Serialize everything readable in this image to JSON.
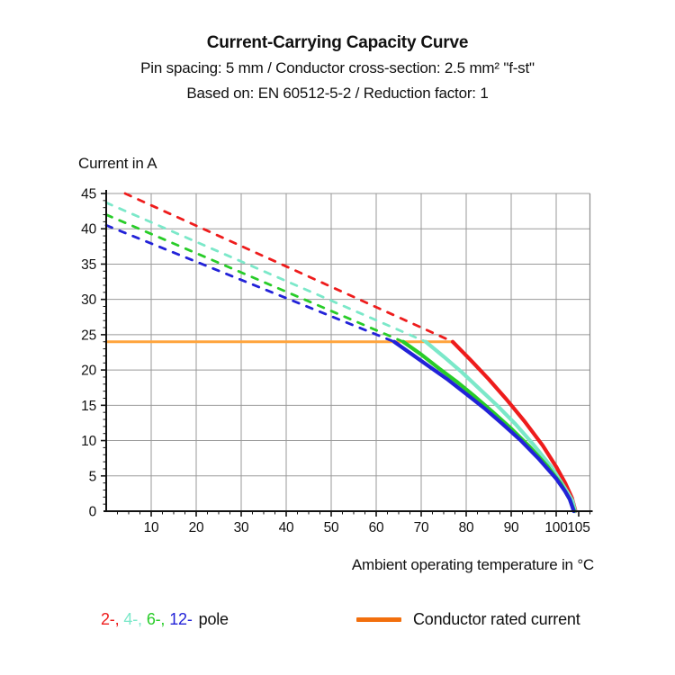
{
  "header": {
    "title": "Current-Carrying Capacity Curve",
    "subtitle_line1": "Pin spacing: 5 mm / Conductor cross-section: 2.5 mm² \"f-st\"",
    "subtitle_line2": "Based on: EN 60512-5-2 / Reduction factor: 1"
  },
  "chart_data": {
    "type": "line",
    "title": "Current-Carrying Capacity Curve",
    "xlabel": "Ambient operating temperature in °C",
    "ylabel": "Current in A",
    "xlim": [
      0,
      107.5
    ],
    "ylim": [
      0,
      45
    ],
    "x_ticks": [
      10,
      20,
      30,
      40,
      50,
      60,
      70,
      80,
      90,
      100,
      105
    ],
    "x_minor_step": 2.5,
    "y_ticks": [
      0,
      5,
      10,
      15,
      20,
      25,
      30,
      35,
      40,
      45
    ],
    "y_minor_step": 1,
    "grid": {
      "x_step": 10,
      "y_step": 5,
      "color": "#999999",
      "border_color": "#8c8c8c"
    },
    "rated_current": {
      "label": "Conductor rated current",
      "value": 24,
      "x_start": 0,
      "x_end": 77,
      "color": "#FFA43C"
    },
    "series": [
      {
        "name": "2-pole",
        "color": "#EE1C1C",
        "dashed": [
          [
            4.2,
            45
          ],
          [
            77,
            24
          ]
        ],
        "solid": [
          [
            77,
            24
          ],
          [
            81,
            21.4
          ],
          [
            85,
            18.7
          ],
          [
            89,
            15.8
          ],
          [
            93,
            12.7
          ],
          [
            97,
            9.3
          ],
          [
            100,
            6.3
          ],
          [
            102,
            4.0
          ],
          [
            103.5,
            1.9
          ],
          [
            104.3,
            0
          ]
        ]
      },
      {
        "name": "4-pole",
        "color": "#7BE8C9",
        "dashed": [
          [
            0,
            43.7
          ],
          [
            71,
            24
          ]
        ],
        "solid": [
          [
            71,
            24
          ],
          [
            75,
            21.9
          ],
          [
            79,
            19.7
          ],
          [
            83,
            17.3
          ],
          [
            87,
            14.9
          ],
          [
            91,
            12.3
          ],
          [
            95,
            9.4
          ],
          [
            99,
            6.2
          ],
          [
            102,
            3.2
          ],
          [
            103.6,
            1.5
          ],
          [
            104.2,
            0
          ]
        ]
      },
      {
        "name": "6-pole",
        "color": "#28CC28",
        "dashed": [
          [
            0,
            42.0
          ],
          [
            66,
            24
          ]
        ],
        "solid": [
          [
            66,
            24
          ],
          [
            70,
            22.2
          ],
          [
            74,
            20.2
          ],
          [
            78,
            18.3
          ],
          [
            82,
            16.2
          ],
          [
            86,
            14.0
          ],
          [
            90,
            11.7
          ],
          [
            94,
            9.2
          ],
          [
            98,
            6.4
          ],
          [
            101,
            3.9
          ],
          [
            103,
            1.7
          ],
          [
            104,
            0
          ]
        ]
      },
      {
        "name": "12-pole",
        "color": "#2222D8",
        "dashed": [
          [
            0,
            40.5
          ],
          [
            64,
            24
          ]
        ],
        "solid": [
          [
            64,
            24
          ],
          [
            68,
            22.2
          ],
          [
            72,
            20.4
          ],
          [
            76,
            18.6
          ],
          [
            80,
            16.6
          ],
          [
            84,
            14.6
          ],
          [
            88,
            12.4
          ],
          [
            92,
            10.1
          ],
          [
            96,
            7.5
          ],
          [
            100,
            4.6
          ],
          [
            102,
            2.8
          ],
          [
            103,
            1.7
          ],
          [
            103.9,
            0
          ]
        ]
      }
    ]
  },
  "legend": {
    "poles": [
      {
        "label": "2-,",
        "color": "#EE1C1C"
      },
      {
        "label": "4-,",
        "color": "#7BE8C9"
      },
      {
        "label": "6-,",
        "color": "#28CC28"
      },
      {
        "label": "12-",
        "color": "#2222D8"
      }
    ],
    "suffix": "pole",
    "rated": {
      "label": "Conductor rated current",
      "swatch_color": "#F26F0D"
    }
  }
}
